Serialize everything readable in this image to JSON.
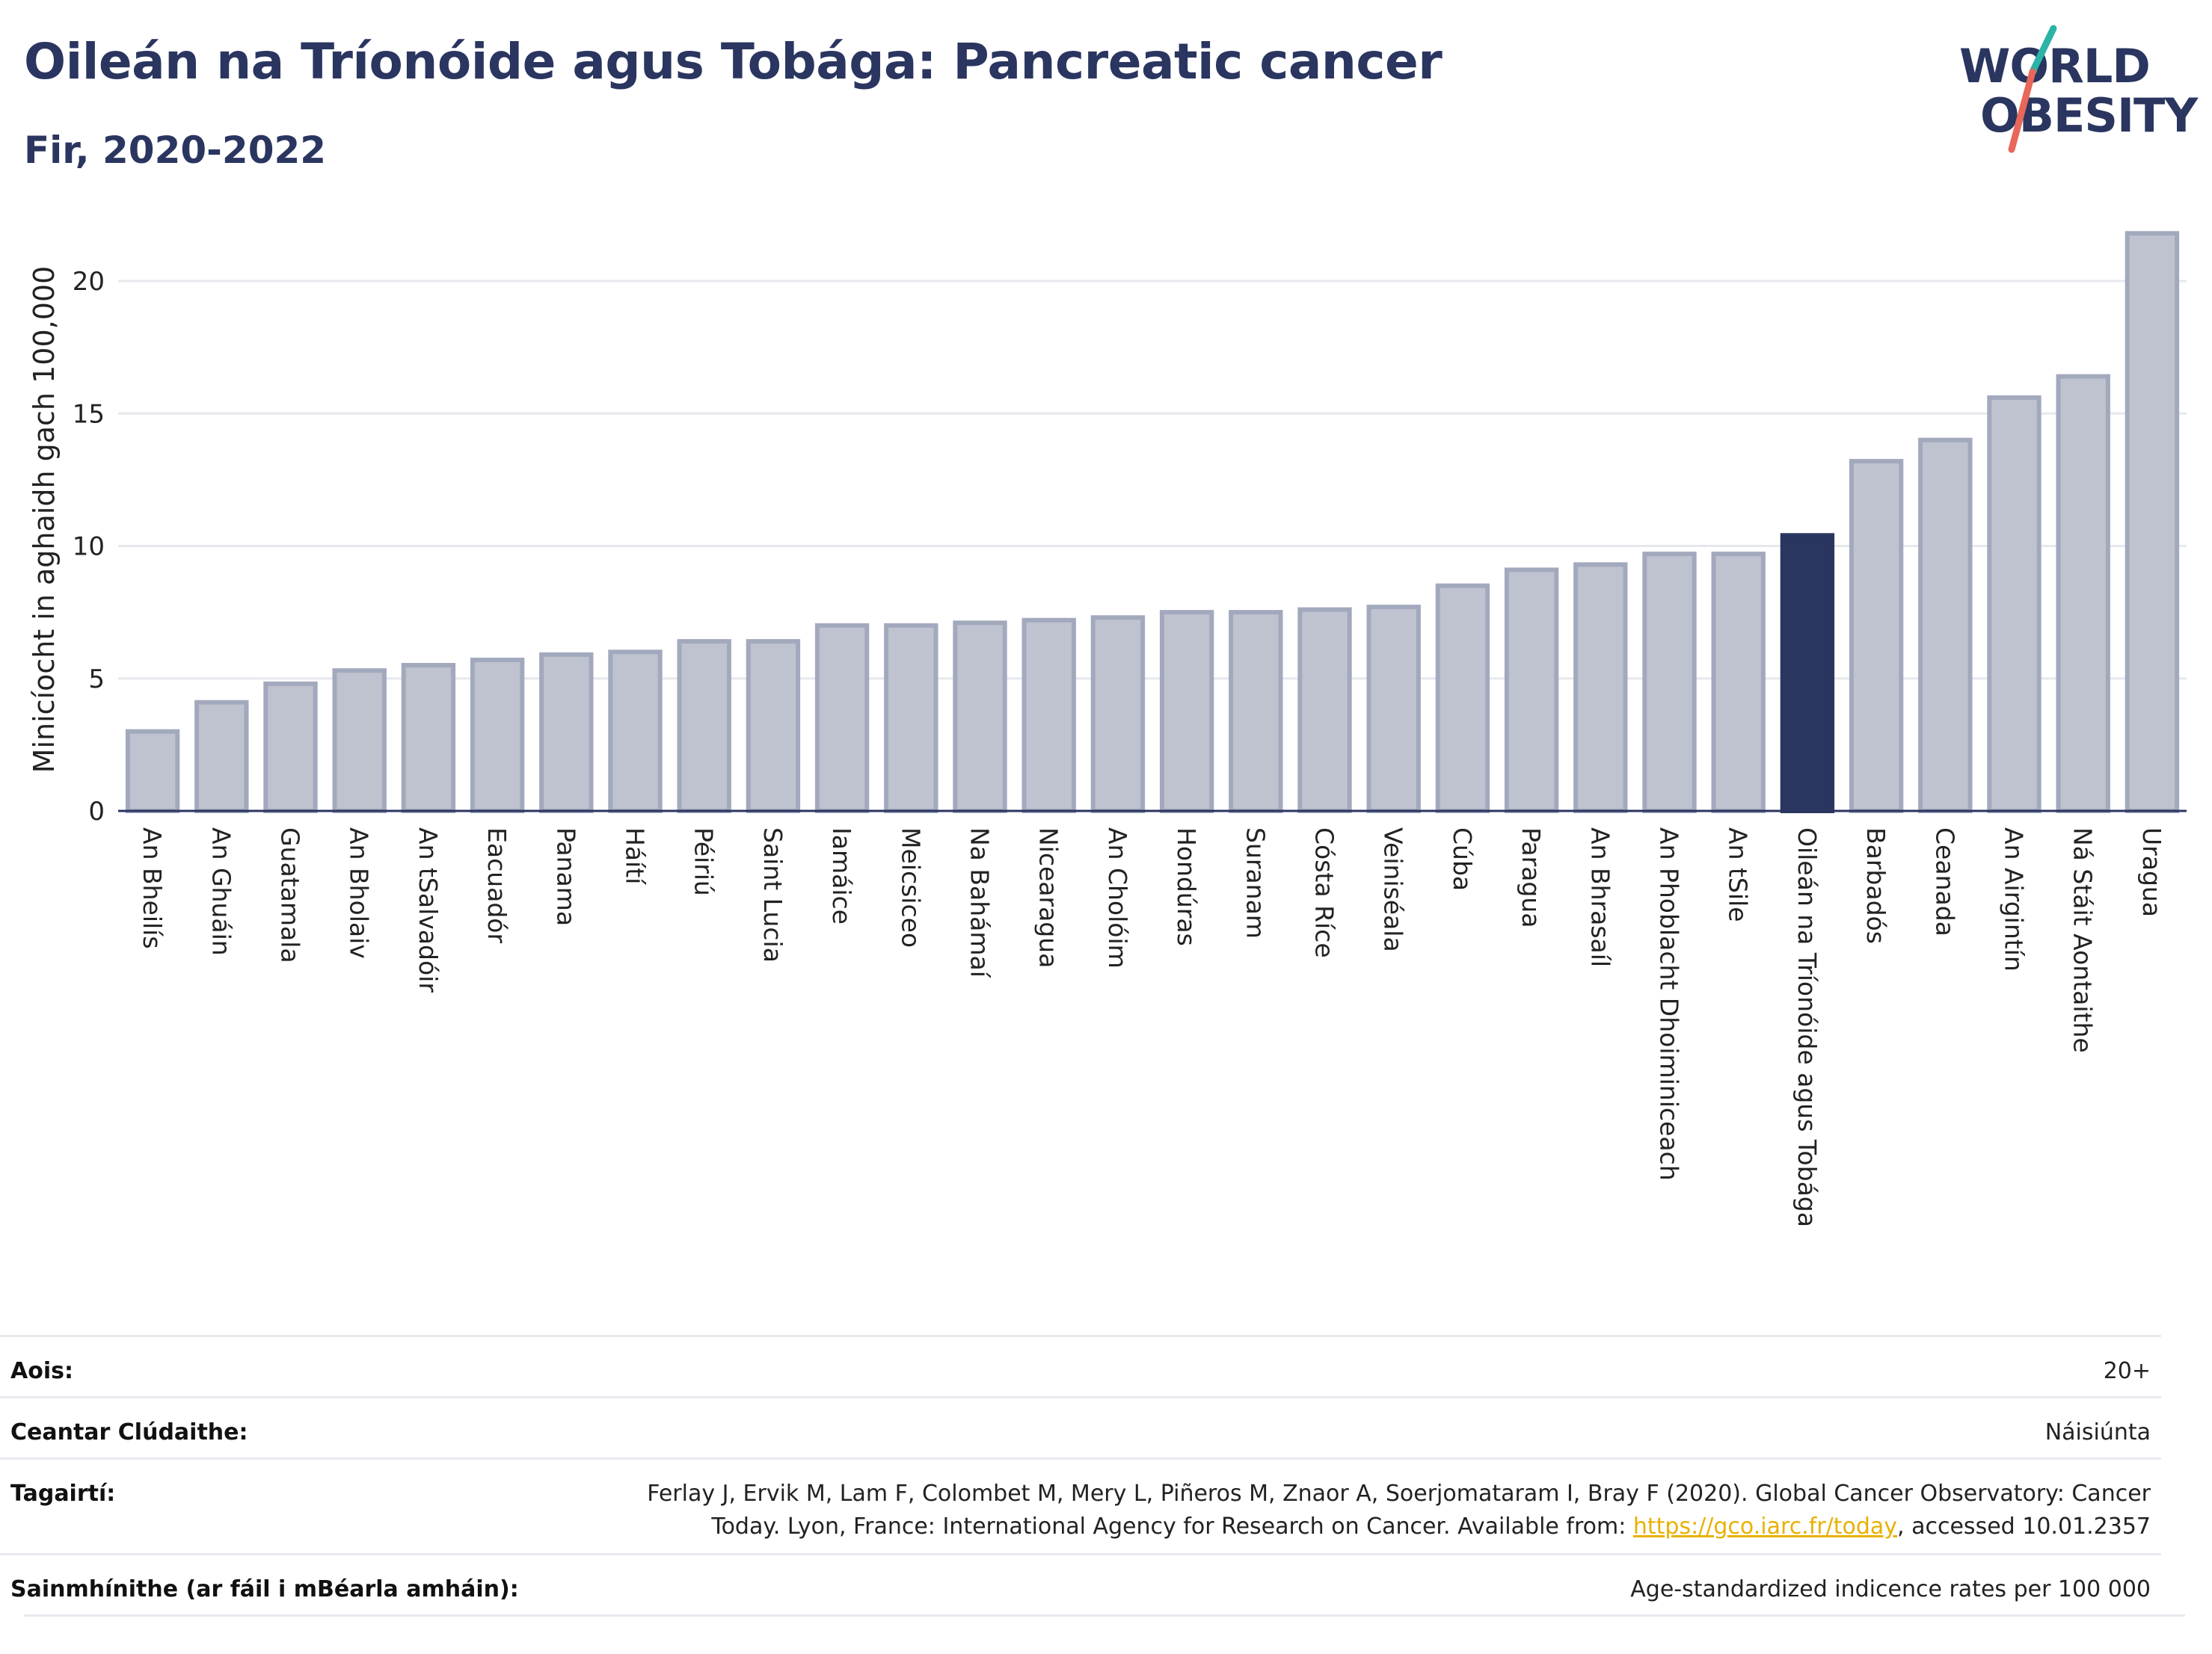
{
  "header": {
    "title": "Oileán na Tríonóide agus Tobága: Pancreatic cancer",
    "subtitle": "Fir, 2020-2022"
  },
  "logo": {
    "line1": "WORLD",
    "line2": "OBESITY",
    "colors": {
      "text": "#2a3560",
      "slash_teal": "#2ab3a6",
      "slash_red": "#e8675a"
    }
  },
  "chart_data": {
    "type": "bar",
    "title": "Oileán na Tríonóide agus Tobága: Pancreatic cancer",
    "subtitle": "Fir, 2020-2022",
    "ylabel": "Minicíocht in aghaidh gach 100,000",
    "xlabel": "",
    "ylim": [
      0,
      22
    ],
    "yticks": [
      0,
      5,
      10,
      15,
      20
    ],
    "grid": true,
    "highlight": "Oileán na Tríonóide agus Tobága",
    "colors": {
      "bar": "#bfc3d0",
      "bar_edge": "#a3a9bd",
      "highlight": "#2a3560",
      "axis": "#2a3560",
      "grid": "#e6e8ee"
    },
    "categories": [
      "An Bheilís",
      "An Ghuáin",
      "Guatamala",
      "An Bholaiv",
      "An tSalvadóir",
      "Eacuadór",
      "Panama",
      "Háítí",
      "Péiriú",
      "Saint Lucia",
      "Iamáice",
      "Meicsiceo",
      "Na Bahámaí",
      "Nicearagua",
      "An Cholóim",
      "Hondúras",
      "Suranam",
      "Cósta Ríce",
      "Veiniséala",
      "Cúba",
      "Paragua",
      "An Bhrasaíl",
      "An Phoblacht Dhoiminiceach",
      "An tSile",
      "Oileán na Tríonóide agus Tobága",
      "Barbadós",
      "Ceanada",
      "An Airgintín",
      "Ná Stáit Aontaithe",
      "Uragua"
    ],
    "values": [
      3.0,
      4.1,
      4.8,
      5.3,
      5.5,
      5.7,
      5.9,
      6.0,
      6.4,
      6.4,
      7.0,
      7.0,
      7.1,
      7.2,
      7.3,
      7.5,
      7.5,
      7.6,
      7.7,
      8.5,
      9.1,
      9.3,
      9.7,
      9.7,
      10.4,
      13.2,
      14.0,
      15.6,
      16.4,
      21.8
    ]
  },
  "info": {
    "age": {
      "label": "Aois:",
      "value": "20+"
    },
    "coverage": {
      "label": "Ceantar Clúdaithe:",
      "value": "Náisiúnta"
    },
    "references": {
      "label": "Tagairtí:",
      "line1": "Ferlay J, Ervik M, Lam F, Colombet M, Mery L, Piñeros M, Znaor A, Soerjomataram I, Bray F (2020). Global Cancer Observatory: Cancer",
      "line2_pre": "Today. Lyon, France: International Agency for Research on Cancer. Available from: ",
      "link": "https://gco.iarc.fr/today",
      "line2_post": ", accessed 10.01.2357"
    },
    "definitions": {
      "label": "Sainmhínithe (ar fáil i mBéarla amháin):",
      "value": "Age-standardized indicence rates per 100 000"
    }
  }
}
